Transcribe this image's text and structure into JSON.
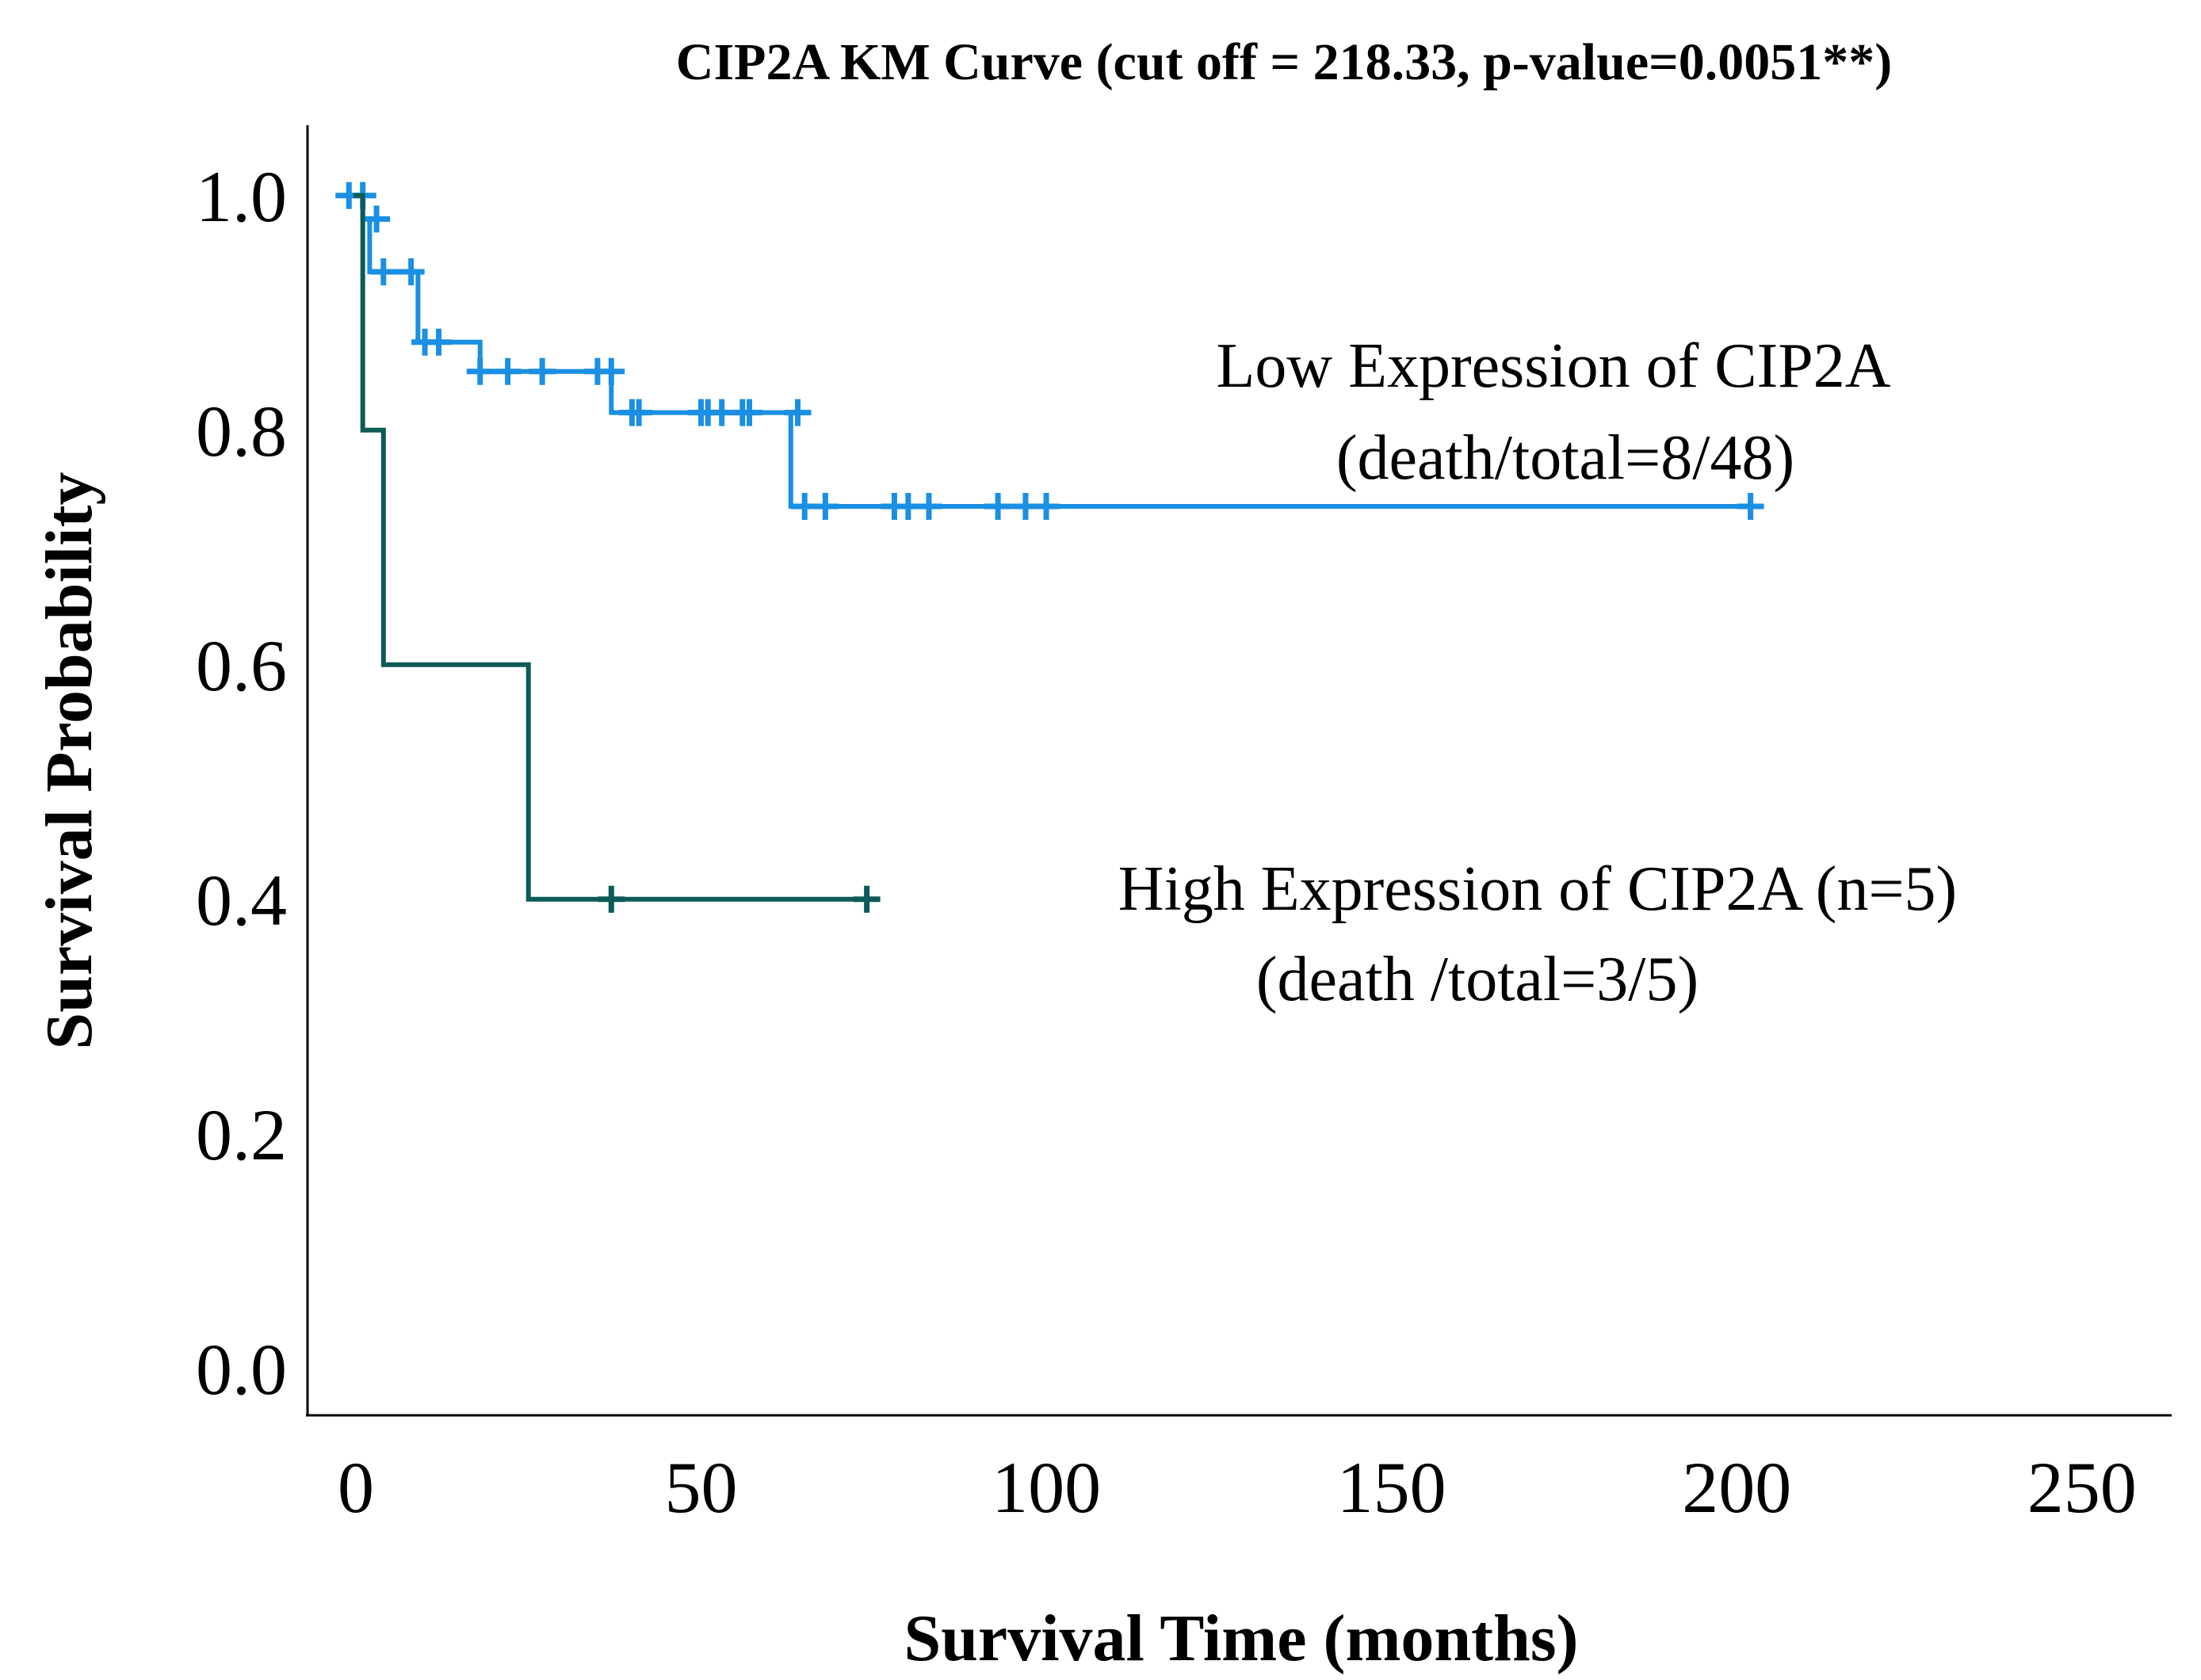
{
  "chart_data": {
    "type": "line",
    "title": "CIP2A KM Curve (cut off = 218.33, p-value=0.0051**)",
    "xlabel": "Survival Time (months)",
    "ylabel": "Survival Probability",
    "xlim": [
      -7,
      263
    ],
    "ylim": [
      -0.04,
      1.06
    ],
    "xticks": [
      0,
      50,
      100,
      150,
      200,
      250
    ],
    "xtick_labels": [
      "0",
      "50",
      "100",
      "150",
      "200",
      "250"
    ],
    "yticks": [
      0.0,
      0.2,
      0.4,
      0.6,
      0.8,
      1.0
    ],
    "ytick_labels": [
      "0.0",
      "0.2",
      "0.4",
      "0.6",
      "0.8",
      "1.0"
    ],
    "grid": false,
    "series": [
      {
        "name": "Low Expression of CIP2A",
        "color": "#1a8fe3",
        "steps": [
          [
            0,
            1.0
          ],
          [
            1,
            0.98
          ],
          [
            2,
            0.935
          ],
          [
            9,
            0.875
          ],
          [
            18,
            0.85
          ],
          [
            37,
            0.815
          ],
          [
            63,
            0.735
          ],
          [
            202,
            0.735
          ]
        ],
        "censored": [
          [
            -1,
            1.0
          ],
          [
            1,
            1.0
          ],
          [
            3,
            0.98
          ],
          [
            4,
            0.935
          ],
          [
            8,
            0.935
          ],
          [
            10,
            0.875
          ],
          [
            12,
            0.875
          ],
          [
            18,
            0.85
          ],
          [
            22,
            0.85
          ],
          [
            27,
            0.85
          ],
          [
            35,
            0.85
          ],
          [
            37,
            0.85
          ],
          [
            40,
            0.815
          ],
          [
            41,
            0.815
          ],
          [
            50,
            0.815
          ],
          [
            51,
            0.815
          ],
          [
            53,
            0.815
          ],
          [
            56,
            0.815
          ],
          [
            57,
            0.815
          ],
          [
            64,
            0.815
          ],
          [
            65,
            0.735
          ],
          [
            68,
            0.735
          ],
          [
            78,
            0.735
          ],
          [
            80,
            0.735
          ],
          [
            83,
            0.735
          ],
          [
            93,
            0.735
          ],
          [
            97,
            0.735
          ],
          [
            100,
            0.735
          ],
          [
            202,
            0.735
          ]
        ]
      },
      {
        "name": "High Expression of CIP2A",
        "color": "#0e5a57",
        "steps": [
          [
            0,
            1.0
          ],
          [
            1,
            0.8
          ],
          [
            4,
            0.6
          ],
          [
            25,
            0.4
          ],
          [
            74,
            0.4
          ]
        ],
        "censored": [
          [
            37,
            0.4
          ],
          [
            74,
            0.4
          ]
        ]
      }
    ],
    "annotations": [
      {
        "line1": "Low Expression of CIP2A",
        "line2": "(death/total=8/48)"
      },
      {
        "line1": "High Expression of CIP2A (n=5)",
        "line2": "(death /total=3/5)"
      }
    ]
  }
}
